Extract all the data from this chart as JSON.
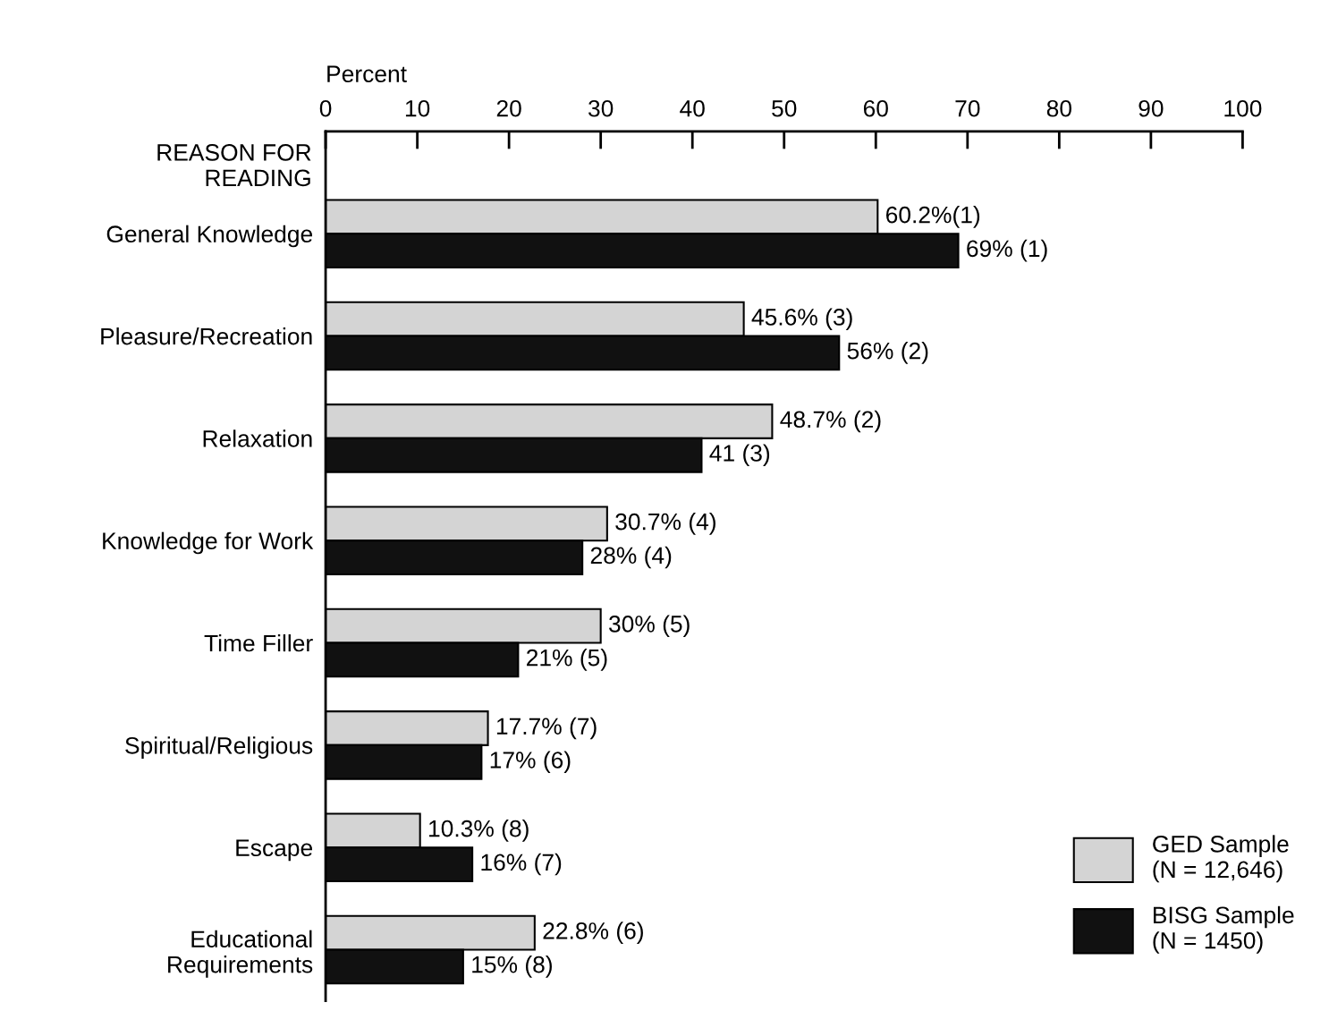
{
  "chart_data": {
    "type": "bar",
    "orientation": "horizontal",
    "xlabel": "Percent",
    "ylabel": "REASON FOR\nREADING",
    "categories": [
      "General Knowledge",
      "Pleasure/Recreation",
      "Relaxation",
      "Knowledge for Work",
      "Time Filler",
      "Spiritual/Religious",
      "Escape",
      "Educational\nRequirements"
    ],
    "series": [
      {
        "name": "GED Sample\n(N = 12,646)",
        "color": "#d4d4d4",
        "values": [
          60.2,
          45.6,
          48.7,
          30.7,
          30,
          17.7,
          10.3,
          22.8
        ],
        "value_labels": [
          "60.2%(1)",
          "45.6% (3)",
          "48.7% (2)",
          "30.7% (4)",
          "30% (5)",
          "17.7% (7)",
          "10.3% (8)",
          "22.8% (6)"
        ]
      },
      {
        "name": "BISG Sample\n(N = 1450)",
        "color": "#111111",
        "values": [
          69,
          56,
          41,
          28,
          21,
          17,
          16,
          15
        ],
        "value_labels": [
          "69% (1)",
          "56% (2)",
          "41 (3)",
          "28% (4)",
          "21% (5)",
          "17% (6)",
          "16% (7)",
          "15% (8)"
        ]
      }
    ],
    "xlim": [
      0,
      100
    ],
    "xticks": [
      0,
      10,
      20,
      30,
      40,
      50,
      60,
      70,
      80,
      90,
      100
    ],
    "grid": false,
    "legend": "bottom right"
  }
}
